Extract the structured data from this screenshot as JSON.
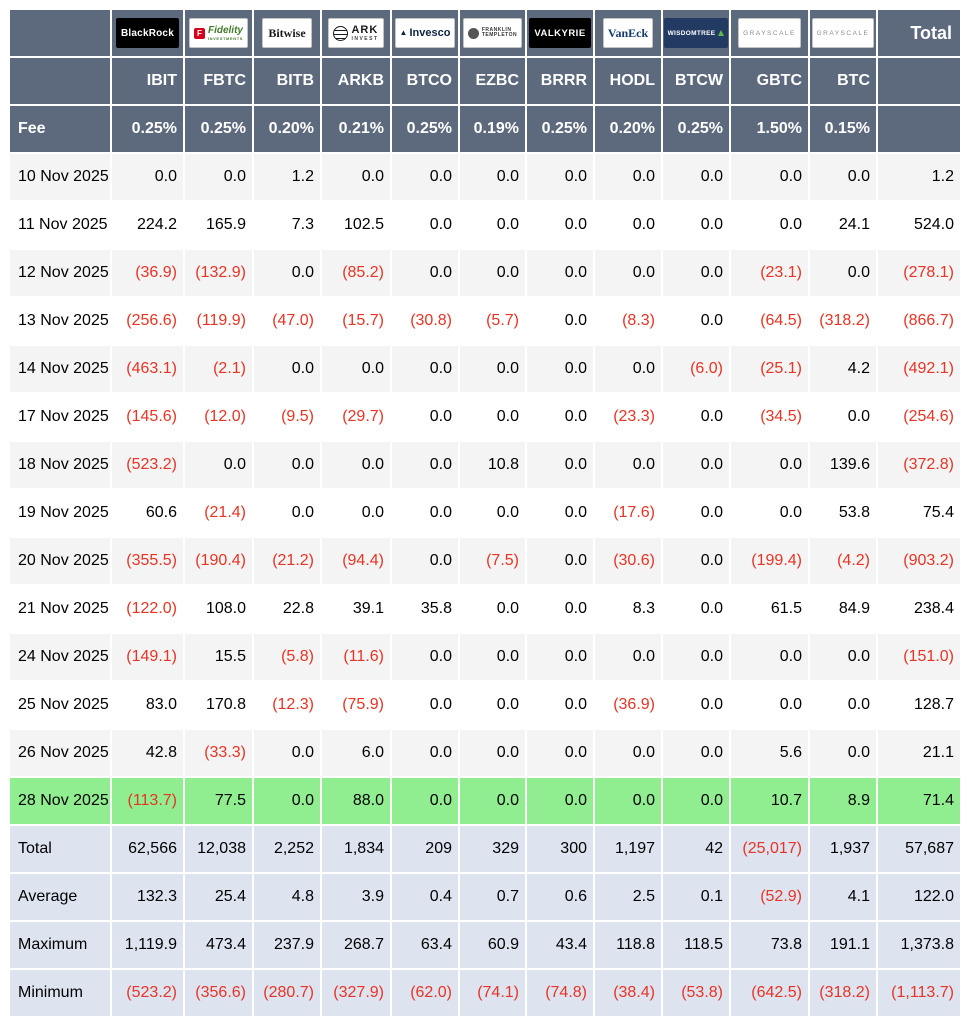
{
  "chart_data": {
    "type": "table",
    "total_label": "Total",
    "fee_label": "Fee",
    "providers": [
      {
        "name": "BlackRock",
        "ticker": "IBIT",
        "fee": "0.25%",
        "logo": {
          "type": "blackrock",
          "text": "BlackRock"
        }
      },
      {
        "name": "Fidelity",
        "ticker": "FBTC",
        "fee": "0.25%",
        "logo": {
          "type": "fidelity",
          "icon_letter": "F",
          "text": "Fidelity",
          "subtext": "INVESTMENTS"
        }
      },
      {
        "name": "Bitwise",
        "ticker": "BITB",
        "fee": "0.20%",
        "logo": {
          "type": "bitwise",
          "text": "Bitwise"
        }
      },
      {
        "name": "ARK Invest",
        "ticker": "ARKB",
        "fee": "0.21%",
        "logo": {
          "type": "ark",
          "text": "ARK",
          "subtext": "INVEST"
        }
      },
      {
        "name": "Invesco",
        "ticker": "BTCO",
        "fee": "0.25%",
        "logo": {
          "type": "invesco",
          "text": "Invesco"
        }
      },
      {
        "name": "Franklin Templeton",
        "ticker": "EZBC",
        "fee": "0.19%",
        "logo": {
          "type": "franklin",
          "text": "FRANKLIN",
          "subtext": "TEMPLETON"
        }
      },
      {
        "name": "Valkyrie",
        "ticker": "BRRR",
        "fee": "0.25%",
        "logo": {
          "type": "valkyrie",
          "text": "VALKYRIE"
        }
      },
      {
        "name": "VanEck",
        "ticker": "HODL",
        "fee": "0.20%",
        "logo": {
          "type": "vaneck",
          "text": "VanEck"
        }
      },
      {
        "name": "WisdomTree",
        "ticker": "BTCW",
        "fee": "0.25%",
        "logo": {
          "type": "wisdomtree",
          "text": "WISDOMTREE"
        }
      },
      {
        "name": "Grayscale",
        "ticker": "GBTC",
        "fee": "1.50%",
        "logo": {
          "type": "grayscale",
          "text": "GRAYSCALE"
        }
      },
      {
        "name": "Grayscale",
        "ticker": "BTC",
        "fee": "0.15%",
        "logo": {
          "type": "grayscale",
          "text": "GRAYSCALE"
        }
      }
    ],
    "rows": [
      {
        "date": "10 Nov 2025",
        "values": [
          "0.0",
          "0.0",
          "1.2",
          "0.0",
          "0.0",
          "0.0",
          "0.0",
          "0.0",
          "0.0",
          "0.0",
          "0.0",
          "1.2"
        ]
      },
      {
        "date": "11 Nov 2025",
        "values": [
          "224.2",
          "165.9",
          "7.3",
          "102.5",
          "0.0",
          "0.0",
          "0.0",
          "0.0",
          "0.0",
          "0.0",
          "24.1",
          "524.0"
        ]
      },
      {
        "date": "12 Nov 2025",
        "values": [
          "(36.9)",
          "(132.9)",
          "0.0",
          "(85.2)",
          "0.0",
          "0.0",
          "0.0",
          "0.0",
          "0.0",
          "(23.1)",
          "0.0",
          "(278.1)"
        ]
      },
      {
        "date": "13 Nov 2025",
        "values": [
          "(256.6)",
          "(119.9)",
          "(47.0)",
          "(15.7)",
          "(30.8)",
          "(5.7)",
          "0.0",
          "(8.3)",
          "0.0",
          "(64.5)",
          "(318.2)",
          "(866.7)"
        ]
      },
      {
        "date": "14 Nov 2025",
        "values": [
          "(463.1)",
          "(2.1)",
          "0.0",
          "0.0",
          "0.0",
          "0.0",
          "0.0",
          "0.0",
          "(6.0)",
          "(25.1)",
          "4.2",
          "(492.1)"
        ]
      },
      {
        "date": "17 Nov 2025",
        "values": [
          "(145.6)",
          "(12.0)",
          "(9.5)",
          "(29.7)",
          "0.0",
          "0.0",
          "0.0",
          "(23.3)",
          "0.0",
          "(34.5)",
          "0.0",
          "(254.6)"
        ]
      },
      {
        "date": "18 Nov 2025",
        "values": [
          "(523.2)",
          "0.0",
          "0.0",
          "0.0",
          "0.0",
          "10.8",
          "0.0",
          "0.0",
          "0.0",
          "0.0",
          "139.6",
          "(372.8)"
        ]
      },
      {
        "date": "19 Nov 2025",
        "values": [
          "60.6",
          "(21.4)",
          "0.0",
          "0.0",
          "0.0",
          "0.0",
          "0.0",
          "(17.6)",
          "0.0",
          "0.0",
          "53.8",
          "75.4"
        ]
      },
      {
        "date": "20 Nov 2025",
        "values": [
          "(355.5)",
          "(190.4)",
          "(21.2)",
          "(94.4)",
          "0.0",
          "(7.5)",
          "0.0",
          "(30.6)",
          "0.0",
          "(199.4)",
          "(4.2)",
          "(903.2)"
        ]
      },
      {
        "date": "21 Nov 2025",
        "values": [
          "(122.0)",
          "108.0",
          "22.8",
          "39.1",
          "35.8",
          "0.0",
          "0.0",
          "8.3",
          "0.0",
          "61.5",
          "84.9",
          "238.4"
        ]
      },
      {
        "date": "24 Nov 2025",
        "values": [
          "(149.1)",
          "15.5",
          "(5.8)",
          "(11.6)",
          "0.0",
          "0.0",
          "0.0",
          "0.0",
          "0.0",
          "0.0",
          "0.0",
          "(151.0)"
        ]
      },
      {
        "date": "25 Nov 2025",
        "values": [
          "83.0",
          "170.8",
          "(12.3)",
          "(75.9)",
          "0.0",
          "0.0",
          "0.0",
          "(36.9)",
          "0.0",
          "0.0",
          "0.0",
          "128.7"
        ]
      },
      {
        "date": "26 Nov 2025",
        "values": [
          "42.8",
          "(33.3)",
          "0.0",
          "6.0",
          "0.0",
          "0.0",
          "0.0",
          "0.0",
          "0.0",
          "5.6",
          "0.0",
          "21.1"
        ]
      },
      {
        "date": "28 Nov 2025",
        "highlighted": true,
        "values": [
          "(113.7)",
          "77.5",
          "0.0",
          "88.0",
          "0.0",
          "0.0",
          "0.0",
          "0.0",
          "0.0",
          "10.7",
          "8.9",
          "71.4"
        ]
      }
    ],
    "summary_rows": [
      {
        "label": "Total",
        "values": [
          "62,566",
          "12,038",
          "2,252",
          "1,834",
          "209",
          "329",
          "300",
          "1,197",
          "42",
          "(25,017)",
          "1,937",
          "57,687"
        ]
      },
      {
        "label": "Average",
        "values": [
          "132.3",
          "25.4",
          "4.8",
          "3.9",
          "0.4",
          "0.7",
          "0.6",
          "2.5",
          "0.1",
          "(52.9)",
          "4.1",
          "122.0"
        ]
      },
      {
        "label": "Maximum",
        "values": [
          "1,119.9",
          "473.4",
          "237.9",
          "268.7",
          "63.4",
          "60.9",
          "43.4",
          "118.8",
          "118.5",
          "73.8",
          "191.1",
          "1,373.8"
        ]
      },
      {
        "label": "Minimum",
        "values": [
          "(523.2)",
          "(356.6)",
          "(280.7)",
          "(327.9)",
          "(62.0)",
          "(74.1)",
          "(74.8)",
          "(38.4)",
          "(53.8)",
          "(642.5)",
          "(318.2)",
          "(1,113.7)"
        ]
      }
    ]
  },
  "colors": {
    "header_bg": "#5d6a7d",
    "row_alt_bg": "#f4f4f4",
    "highlight_bg": "#90ee90",
    "summary_bg": "#dde4f0",
    "negative": "#e93323"
  }
}
